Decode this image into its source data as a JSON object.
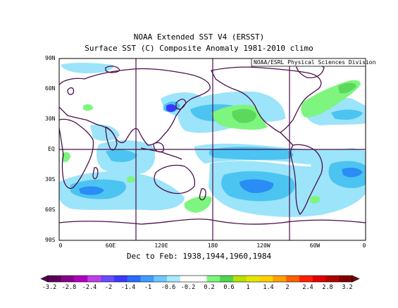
{
  "title": {
    "line1": "NOAA Extended SST V4 (ERSST)",
    "line2": "Surface SST (C) Composite Anomaly 1981-2010 climo"
  },
  "credit": "NOAA/ESRL Physical Sciences Division",
  "xlabel": "Dec to Feb: 1938,1944,1960,1984",
  "lat_ticks": [
    "90N",
    "60N",
    "30N",
    "EQ",
    "30S",
    "60S",
    "90S"
  ],
  "lon_ticks": [
    "0",
    "60E",
    "120E",
    "180",
    "120W",
    "60W",
    "0"
  ],
  "colorbar": {
    "labels": [
      "-3.2",
      "-2.8",
      "-2.4",
      "-2",
      "-1.4",
      "-1",
      "-0.6",
      "-0.2",
      "0.2",
      "0.6",
      "1",
      "1.4",
      "2",
      "2.4",
      "2.8",
      "3.2"
    ],
    "colors": [
      "#5a0058",
      "#8b008b",
      "#b000c0",
      "#c040e8",
      "#6a4cff",
      "#3a3aff",
      "#2a6cff",
      "#3f9cff",
      "#6fc8ff",
      "#a8eaff",
      "#ffffff",
      "#ffffff",
      "#7ef57e",
      "#4ed64e",
      "#b8e000",
      "#e6e600",
      "#ffd000",
      "#ffa000",
      "#ff6000",
      "#ff2000",
      "#e00000",
      "#b00000",
      "#800000"
    ]
  },
  "colors": {
    "land": "#4a0f4a",
    "grid": "#4a0f4a",
    "cool_light": "#9ce4fa",
    "cool_mid": "#4cc4f2",
    "cool_strong": "#2a8cf5",
    "cool_deep": "#2a5cf0",
    "warm_light": "#7ef57e",
    "warm_mid": "#5cd85c",
    "warm_yellow": "#c8e000"
  }
}
